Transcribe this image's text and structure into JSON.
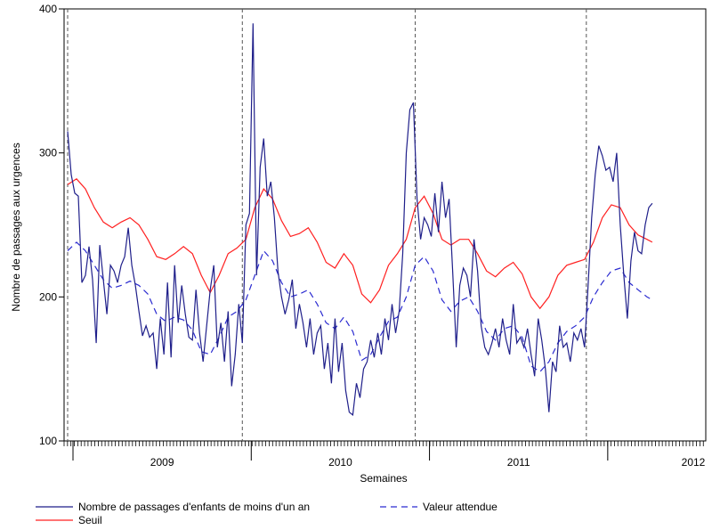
{
  "chart_data": {
    "type": "line",
    "xlabel": "Semaines",
    "ylabel": "Nombre de passages aux urgences",
    "ylim": [
      100,
      400
    ],
    "yticks": [
      "100",
      "200",
      "300",
      "400"
    ],
    "xlim": [
      2008.45,
      2012.05
    ],
    "xticks": [
      {
        "label": "2009",
        "pos": 2009.0
      },
      {
        "label": "2010",
        "pos": 2010.0
      },
      {
        "label": "2011",
        "pos": 2011.0
      },
      {
        "label": "2012",
        "pos": 2012.0
      }
    ],
    "vlines": [
      2008.47,
      2009.45,
      2010.42,
      2011.38
    ],
    "grid": false,
    "legend_position": "bottom",
    "colors": {
      "observed": "#1f1f8a",
      "threshold": "#ff2020",
      "expected": "#2a2ad0",
      "axis": "#000000",
      "vline": "#555555"
    },
    "series": [
      {
        "key": "observed",
        "name": "Nombre de passages d'enfants de moins d'un an",
        "style": "solid",
        "points": [
          [
            2008.47,
            315
          ],
          [
            2008.49,
            285
          ],
          [
            2008.51,
            272
          ],
          [
            2008.53,
            270
          ],
          [
            2008.55,
            210
          ],
          [
            2008.57,
            215
          ],
          [
            2008.59,
            235
          ],
          [
            2008.61,
            212
          ],
          [
            2008.63,
            168
          ],
          [
            2008.65,
            236
          ],
          [
            2008.67,
            212
          ],
          [
            2008.69,
            188
          ],
          [
            2008.71,
            222
          ],
          [
            2008.73,
            218
          ],
          [
            2008.75,
            210
          ],
          [
            2008.77,
            222
          ],
          [
            2008.79,
            228
          ],
          [
            2008.81,
            248
          ],
          [
            2008.83,
            222
          ],
          [
            2008.85,
            208
          ],
          [
            2008.87,
            190
          ],
          [
            2008.89,
            173
          ],
          [
            2008.91,
            180
          ],
          [
            2008.93,
            172
          ],
          [
            2008.95,
            175
          ],
          [
            2008.97,
            150
          ],
          [
            2008.99,
            185
          ],
          [
            2009.01,
            160
          ],
          [
            2009.03,
            210
          ],
          [
            2009.05,
            158
          ],
          [
            2009.07,
            222
          ],
          [
            2009.09,
            182
          ],
          [
            2009.11,
            208
          ],
          [
            2009.13,
            188
          ],
          [
            2009.15,
            172
          ],
          [
            2009.17,
            170
          ],
          [
            2009.19,
            205
          ],
          [
            2009.21,
            175
          ],
          [
            2009.23,
            155
          ],
          [
            2009.25,
            180
          ],
          [
            2009.27,
            205
          ],
          [
            2009.29,
            222
          ],
          [
            2009.31,
            165
          ],
          [
            2009.33,
            182
          ],
          [
            2009.35,
            155
          ],
          [
            2009.37,
            190
          ],
          [
            2009.39,
            138
          ],
          [
            2009.41,
            160
          ],
          [
            2009.43,
            195
          ],
          [
            2009.45,
            168
          ],
          [
            2009.47,
            250
          ],
          [
            2009.49,
            258
          ],
          [
            2009.51,
            390
          ],
          [
            2009.53,
            215
          ],
          [
            2009.55,
            290
          ],
          [
            2009.57,
            310
          ],
          [
            2009.59,
            270
          ],
          [
            2009.61,
            280
          ],
          [
            2009.63,
            255
          ],
          [
            2009.65,
            218
          ],
          [
            2009.67,
            200
          ],
          [
            2009.69,
            188
          ],
          [
            2009.71,
            198
          ],
          [
            2009.73,
            212
          ],
          [
            2009.75,
            178
          ],
          [
            2009.77,
            195
          ],
          [
            2009.79,
            182
          ],
          [
            2009.81,
            165
          ],
          [
            2009.83,
            185
          ],
          [
            2009.85,
            160
          ],
          [
            2009.87,
            175
          ],
          [
            2009.89,
            180
          ],
          [
            2009.91,
            150
          ],
          [
            2009.93,
            168
          ],
          [
            2009.95,
            140
          ],
          [
            2009.97,
            185
          ],
          [
            2009.99,
            148
          ],
          [
            2010.01,
            168
          ],
          [
            2010.03,
            135
          ],
          [
            2010.05,
            120
          ],
          [
            2010.07,
            118
          ],
          [
            2010.09,
            140
          ],
          [
            2010.11,
            130
          ],
          [
            2010.13,
            150
          ],
          [
            2010.15,
            155
          ],
          [
            2010.17,
            170
          ],
          [
            2010.19,
            158
          ],
          [
            2010.21,
            175
          ],
          [
            2010.23,
            160
          ],
          [
            2010.25,
            185
          ],
          [
            2010.27,
            170
          ],
          [
            2010.29,
            195
          ],
          [
            2010.31,
            175
          ],
          [
            2010.33,
            190
          ],
          [
            2010.35,
            230
          ],
          [
            2010.37,
            300
          ],
          [
            2010.39,
            330
          ],
          [
            2010.41,
            335
          ],
          [
            2010.43,
            268
          ],
          [
            2010.45,
            240
          ],
          [
            2010.47,
            255
          ],
          [
            2010.49,
            250
          ],
          [
            2010.51,
            242
          ],
          [
            2010.53,
            272
          ],
          [
            2010.55,
            245
          ],
          [
            2010.57,
            280
          ],
          [
            2010.59,
            255
          ],
          [
            2010.61,
            268
          ],
          [
            2010.63,
            218
          ],
          [
            2010.65,
            165
          ],
          [
            2010.67,
            208
          ],
          [
            2010.69,
            220
          ],
          [
            2010.71,
            215
          ],
          [
            2010.73,
            200
          ],
          [
            2010.75,
            240
          ],
          [
            2010.77,
            218
          ],
          [
            2010.79,
            180
          ],
          [
            2010.81,
            165
          ],
          [
            2010.83,
            160
          ],
          [
            2010.85,
            168
          ],
          [
            2010.87,
            178
          ],
          [
            2010.89,
            165
          ],
          [
            2010.91,
            185
          ],
          [
            2010.93,
            170
          ],
          [
            2010.95,
            160
          ],
          [
            2010.97,
            195
          ],
          [
            2010.99,
            168
          ],
          [
            2011.01,
            172
          ],
          [
            2011.03,
            165
          ],
          [
            2011.05,
            178
          ],
          [
            2011.07,
            160
          ],
          [
            2011.09,
            145
          ],
          [
            2011.11,
            185
          ],
          [
            2011.13,
            170
          ],
          [
            2011.15,
            150
          ],
          [
            2011.17,
            120
          ],
          [
            2011.19,
            155
          ],
          [
            2011.21,
            148
          ],
          [
            2011.23,
            180
          ],
          [
            2011.25,
            165
          ],
          [
            2011.27,
            168
          ],
          [
            2011.29,
            155
          ],
          [
            2011.31,
            175
          ],
          [
            2011.33,
            170
          ],
          [
            2011.35,
            178
          ],
          [
            2011.37,
            165
          ],
          [
            2011.39,
            208
          ],
          [
            2011.41,
            255
          ],
          [
            2011.43,
            285
          ],
          [
            2011.45,
            305
          ],
          [
            2011.47,
            298
          ],
          [
            2011.49,
            288
          ],
          [
            2011.51,
            290
          ],
          [
            2011.53,
            280
          ],
          [
            2011.55,
            300
          ],
          [
            2011.57,
            250
          ],
          [
            2011.59,
            215
          ],
          [
            2011.61,
            185
          ],
          [
            2011.63,
            225
          ],
          [
            2011.65,
            245
          ],
          [
            2011.67,
            232
          ],
          [
            2011.69,
            230
          ],
          [
            2011.71,
            250
          ],
          [
            2011.73,
            262
          ],
          [
            2011.75,
            265
          ]
        ]
      },
      {
        "key": "expected",
        "name": "Valeur attendue",
        "style": "dashed",
        "points": [
          [
            2008.47,
            232
          ],
          [
            2008.52,
            238
          ],
          [
            2008.57,
            232
          ],
          [
            2008.62,
            222
          ],
          [
            2008.67,
            212
          ],
          [
            2008.72,
            206
          ],
          [
            2008.77,
            208
          ],
          [
            2008.82,
            211
          ],
          [
            2008.87,
            208
          ],
          [
            2008.92,
            202
          ],
          [
            2008.97,
            188
          ],
          [
            2009.02,
            183
          ],
          [
            2009.07,
            186
          ],
          [
            2009.12,
            184
          ],
          [
            2009.17,
            177
          ],
          [
            2009.22,
            162
          ],
          [
            2009.27,
            160
          ],
          [
            2009.32,
            172
          ],
          [
            2009.37,
            186
          ],
          [
            2009.42,
            190
          ],
          [
            2009.47,
            198
          ],
          [
            2009.52,
            215
          ],
          [
            2009.57,
            232
          ],
          [
            2009.62,
            225
          ],
          [
            2009.67,
            210
          ],
          [
            2009.72,
            200
          ],
          [
            2009.77,
            202
          ],
          [
            2009.82,
            205
          ],
          [
            2009.87,
            195
          ],
          [
            2009.92,
            182
          ],
          [
            2009.97,
            178
          ],
          [
            2010.02,
            186
          ],
          [
            2010.07,
            176
          ],
          [
            2010.12,
            156
          ],
          [
            2010.17,
            160
          ],
          [
            2010.22,
            172
          ],
          [
            2010.27,
            183
          ],
          [
            2010.32,
            186
          ],
          [
            2010.37,
            200
          ],
          [
            2010.42,
            222
          ],
          [
            2010.47,
            228
          ],
          [
            2010.52,
            218
          ],
          [
            2010.57,
            198
          ],
          [
            2010.62,
            190
          ],
          [
            2010.67,
            197
          ],
          [
            2010.72,
            200
          ],
          [
            2010.77,
            190
          ],
          [
            2010.82,
            176
          ],
          [
            2010.87,
            170
          ],
          [
            2010.92,
            178
          ],
          [
            2010.97,
            180
          ],
          [
            2011.02,
            172
          ],
          [
            2011.07,
            152
          ],
          [
            2011.12,
            148
          ],
          [
            2011.17,
            155
          ],
          [
            2011.22,
            168
          ],
          [
            2011.27,
            176
          ],
          [
            2011.32,
            180
          ],
          [
            2011.37,
            186
          ],
          [
            2011.42,
            200
          ],
          [
            2011.47,
            210
          ],
          [
            2011.52,
            218
          ],
          [
            2011.57,
            220
          ],
          [
            2011.62,
            210
          ],
          [
            2011.67,
            205
          ],
          [
            2011.72,
            200
          ],
          [
            2011.75,
            198
          ]
        ]
      },
      {
        "key": "threshold",
        "name": "Seuil",
        "style": "solid",
        "points": [
          [
            2008.47,
            278
          ],
          [
            2008.52,
            282
          ],
          [
            2008.57,
            275
          ],
          [
            2008.62,
            262
          ],
          [
            2008.67,
            252
          ],
          [
            2008.72,
            248
          ],
          [
            2008.77,
            252
          ],
          [
            2008.82,
            255
          ],
          [
            2008.87,
            250
          ],
          [
            2008.92,
            240
          ],
          [
            2008.97,
            228
          ],
          [
            2009.02,
            226
          ],
          [
            2009.07,
            230
          ],
          [
            2009.12,
            235
          ],
          [
            2009.17,
            230
          ],
          [
            2009.22,
            215
          ],
          [
            2009.27,
            203
          ],
          [
            2009.32,
            215
          ],
          [
            2009.37,
            230
          ],
          [
            2009.42,
            234
          ],
          [
            2009.47,
            240
          ],
          [
            2009.52,
            262
          ],
          [
            2009.57,
            275
          ],
          [
            2009.62,
            268
          ],
          [
            2009.67,
            253
          ],
          [
            2009.72,
            242
          ],
          [
            2009.77,
            244
          ],
          [
            2009.82,
            248
          ],
          [
            2009.87,
            238
          ],
          [
            2009.92,
            224
          ],
          [
            2009.97,
            220
          ],
          [
            2010.02,
            230
          ],
          [
            2010.07,
            222
          ],
          [
            2010.12,
            202
          ],
          [
            2010.17,
            196
          ],
          [
            2010.22,
            205
          ],
          [
            2010.27,
            222
          ],
          [
            2010.32,
            230
          ],
          [
            2010.37,
            240
          ],
          [
            2010.42,
            262
          ],
          [
            2010.47,
            270
          ],
          [
            2010.52,
            258
          ],
          [
            2010.57,
            240
          ],
          [
            2010.62,
            236
          ],
          [
            2010.67,
            240
          ],
          [
            2010.72,
            240
          ],
          [
            2010.77,
            230
          ],
          [
            2010.82,
            218
          ],
          [
            2010.87,
            214
          ],
          [
            2010.92,
            220
          ],
          [
            2010.97,
            224
          ],
          [
            2011.02,
            216
          ],
          [
            2011.07,
            200
          ],
          [
            2011.12,
            192
          ],
          [
            2011.17,
            200
          ],
          [
            2011.22,
            215
          ],
          [
            2011.27,
            222
          ],
          [
            2011.32,
            224
          ],
          [
            2011.37,
            226
          ],
          [
            2011.42,
            238
          ],
          [
            2011.47,
            255
          ],
          [
            2011.52,
            264
          ],
          [
            2011.57,
            262
          ],
          [
            2011.62,
            250
          ],
          [
            2011.67,
            243
          ],
          [
            2011.72,
            240
          ],
          [
            2011.75,
            238
          ]
        ]
      }
    ]
  }
}
